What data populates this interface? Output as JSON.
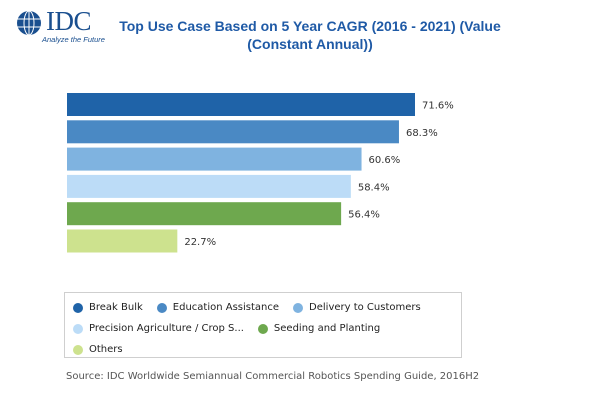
{
  "logo": {
    "text": "IDC",
    "tagline": "Analyze the Future"
  },
  "chart_data": {
    "type": "bar",
    "orientation": "horizontal",
    "title": "Top Use Case Based on 5 Year CAGR (2016 - 2021) (Value (Constant Annual))",
    "title_lines": [
      "Top Use Case Based on 5 Year CAGR (2016 - 2021) (Value",
      "(Constant Annual))"
    ],
    "categories": [
      "Break Bulk",
      "Education Assistance",
      "Delivery to Customers",
      "Precision Agriculture / Crop S...",
      "Seeding and Planting",
      "Others"
    ],
    "values": [
      71.6,
      68.3,
      60.6,
      58.4,
      56.4,
      22.7
    ],
    "value_labels": [
      "71.6%",
      "68.3%",
      "60.6%",
      "58.4%",
      "56.4%",
      "22.7%"
    ],
    "colors": [
      "#1f63a8",
      "#4a89c4",
      "#7fb3e0",
      "#bcdcf7",
      "#6ea84e",
      "#cde28e"
    ],
    "xlim": [
      0,
      100
    ],
    "grid": false,
    "legend_position": "bottom",
    "legend_rows": [
      [
        0,
        1,
        2
      ],
      [
        3,
        4
      ],
      [
        5
      ]
    ],
    "source": "Source: IDC Worldwide Semiannual Commercial Robotics Spending Guide, 2016H2"
  }
}
